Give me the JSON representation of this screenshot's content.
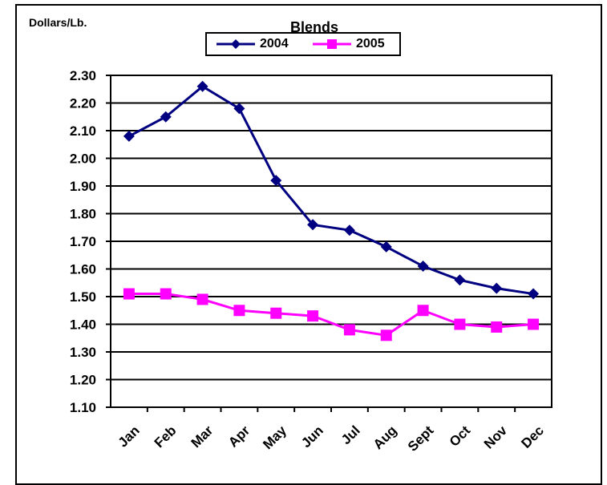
{
  "chart_data": {
    "type": "line",
    "title": "Blends",
    "ylabel": "Dollars/Lb.",
    "xlabel": "",
    "categories": [
      "Jan",
      "Feb",
      "Mar",
      "Apr",
      "May",
      "Jun",
      "Jul",
      "Aug",
      "Sept",
      "Oct",
      "Nov",
      "Dec"
    ],
    "ylim": [
      1.1,
      2.3
    ],
    "yticks": [
      "1.10",
      "1.20",
      "1.30",
      "1.40",
      "1.50",
      "1.60",
      "1.70",
      "1.80",
      "1.90",
      "2.00",
      "2.10",
      "2.20",
      "2.30"
    ],
    "grid": true,
    "legend_position": "top-center",
    "series": [
      {
        "name": "2004",
        "color": "#000080",
        "marker": "diamond",
        "values": [
          2.08,
          2.15,
          2.26,
          2.18,
          1.92,
          1.76,
          1.74,
          1.68,
          1.61,
          1.56,
          1.53,
          1.51
        ]
      },
      {
        "name": "2005",
        "color": "#ff00ff",
        "marker": "square",
        "values": [
          1.51,
          1.51,
          1.49,
          1.45,
          1.44,
          1.43,
          1.38,
          1.36,
          1.45,
          1.4,
          1.39,
          1.4
        ]
      }
    ]
  }
}
